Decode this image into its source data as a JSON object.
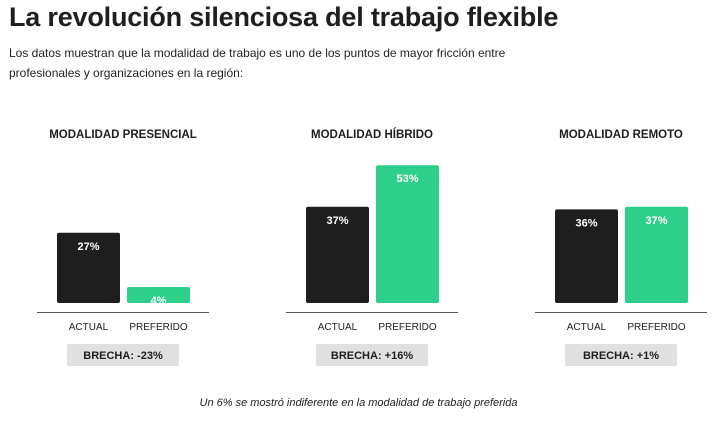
{
  "title": "La revolución silenciosa del trabajo flexible",
  "subtitle": "Los datos muestran que la modalidad de trabajo es uno de los puntos de mayor fricción entre profesionales y organizaciones en la región:",
  "footnote": "Un 6% se mostró indiferente en la modalidad de trabajo preferida",
  "colors": {
    "actual": "#1e1e1e",
    "preferido": "#2ecf8a",
    "gap_box": "#e0e0e0"
  },
  "chart_data": [
    {
      "type": "bar",
      "title": "MODALIDAD PRESENCIAL",
      "categories": [
        "ACTUAL",
        "PREFERIDO"
      ],
      "values": [
        27,
        4
      ],
      "value_labels": [
        "27%",
        "4%"
      ],
      "gap_label": "BRECHA: -23%"
    },
    {
      "type": "bar",
      "title": "MODALIDAD HÍBRIDO",
      "categories": [
        "ACTUAL",
        "PREFERIDO"
      ],
      "values": [
        37,
        53
      ],
      "value_labels": [
        "37%",
        "53%"
      ],
      "gap_label": "BRECHA: +16%"
    },
    {
      "type": "bar",
      "title": "MODALIDAD REMOTO",
      "categories": [
        "ACTUAL",
        "PREFERIDO"
      ],
      "values": [
        36,
        37
      ],
      "value_labels": [
        "36%",
        "37%"
      ],
      "gap_label": "BRECHA: +1%"
    }
  ]
}
